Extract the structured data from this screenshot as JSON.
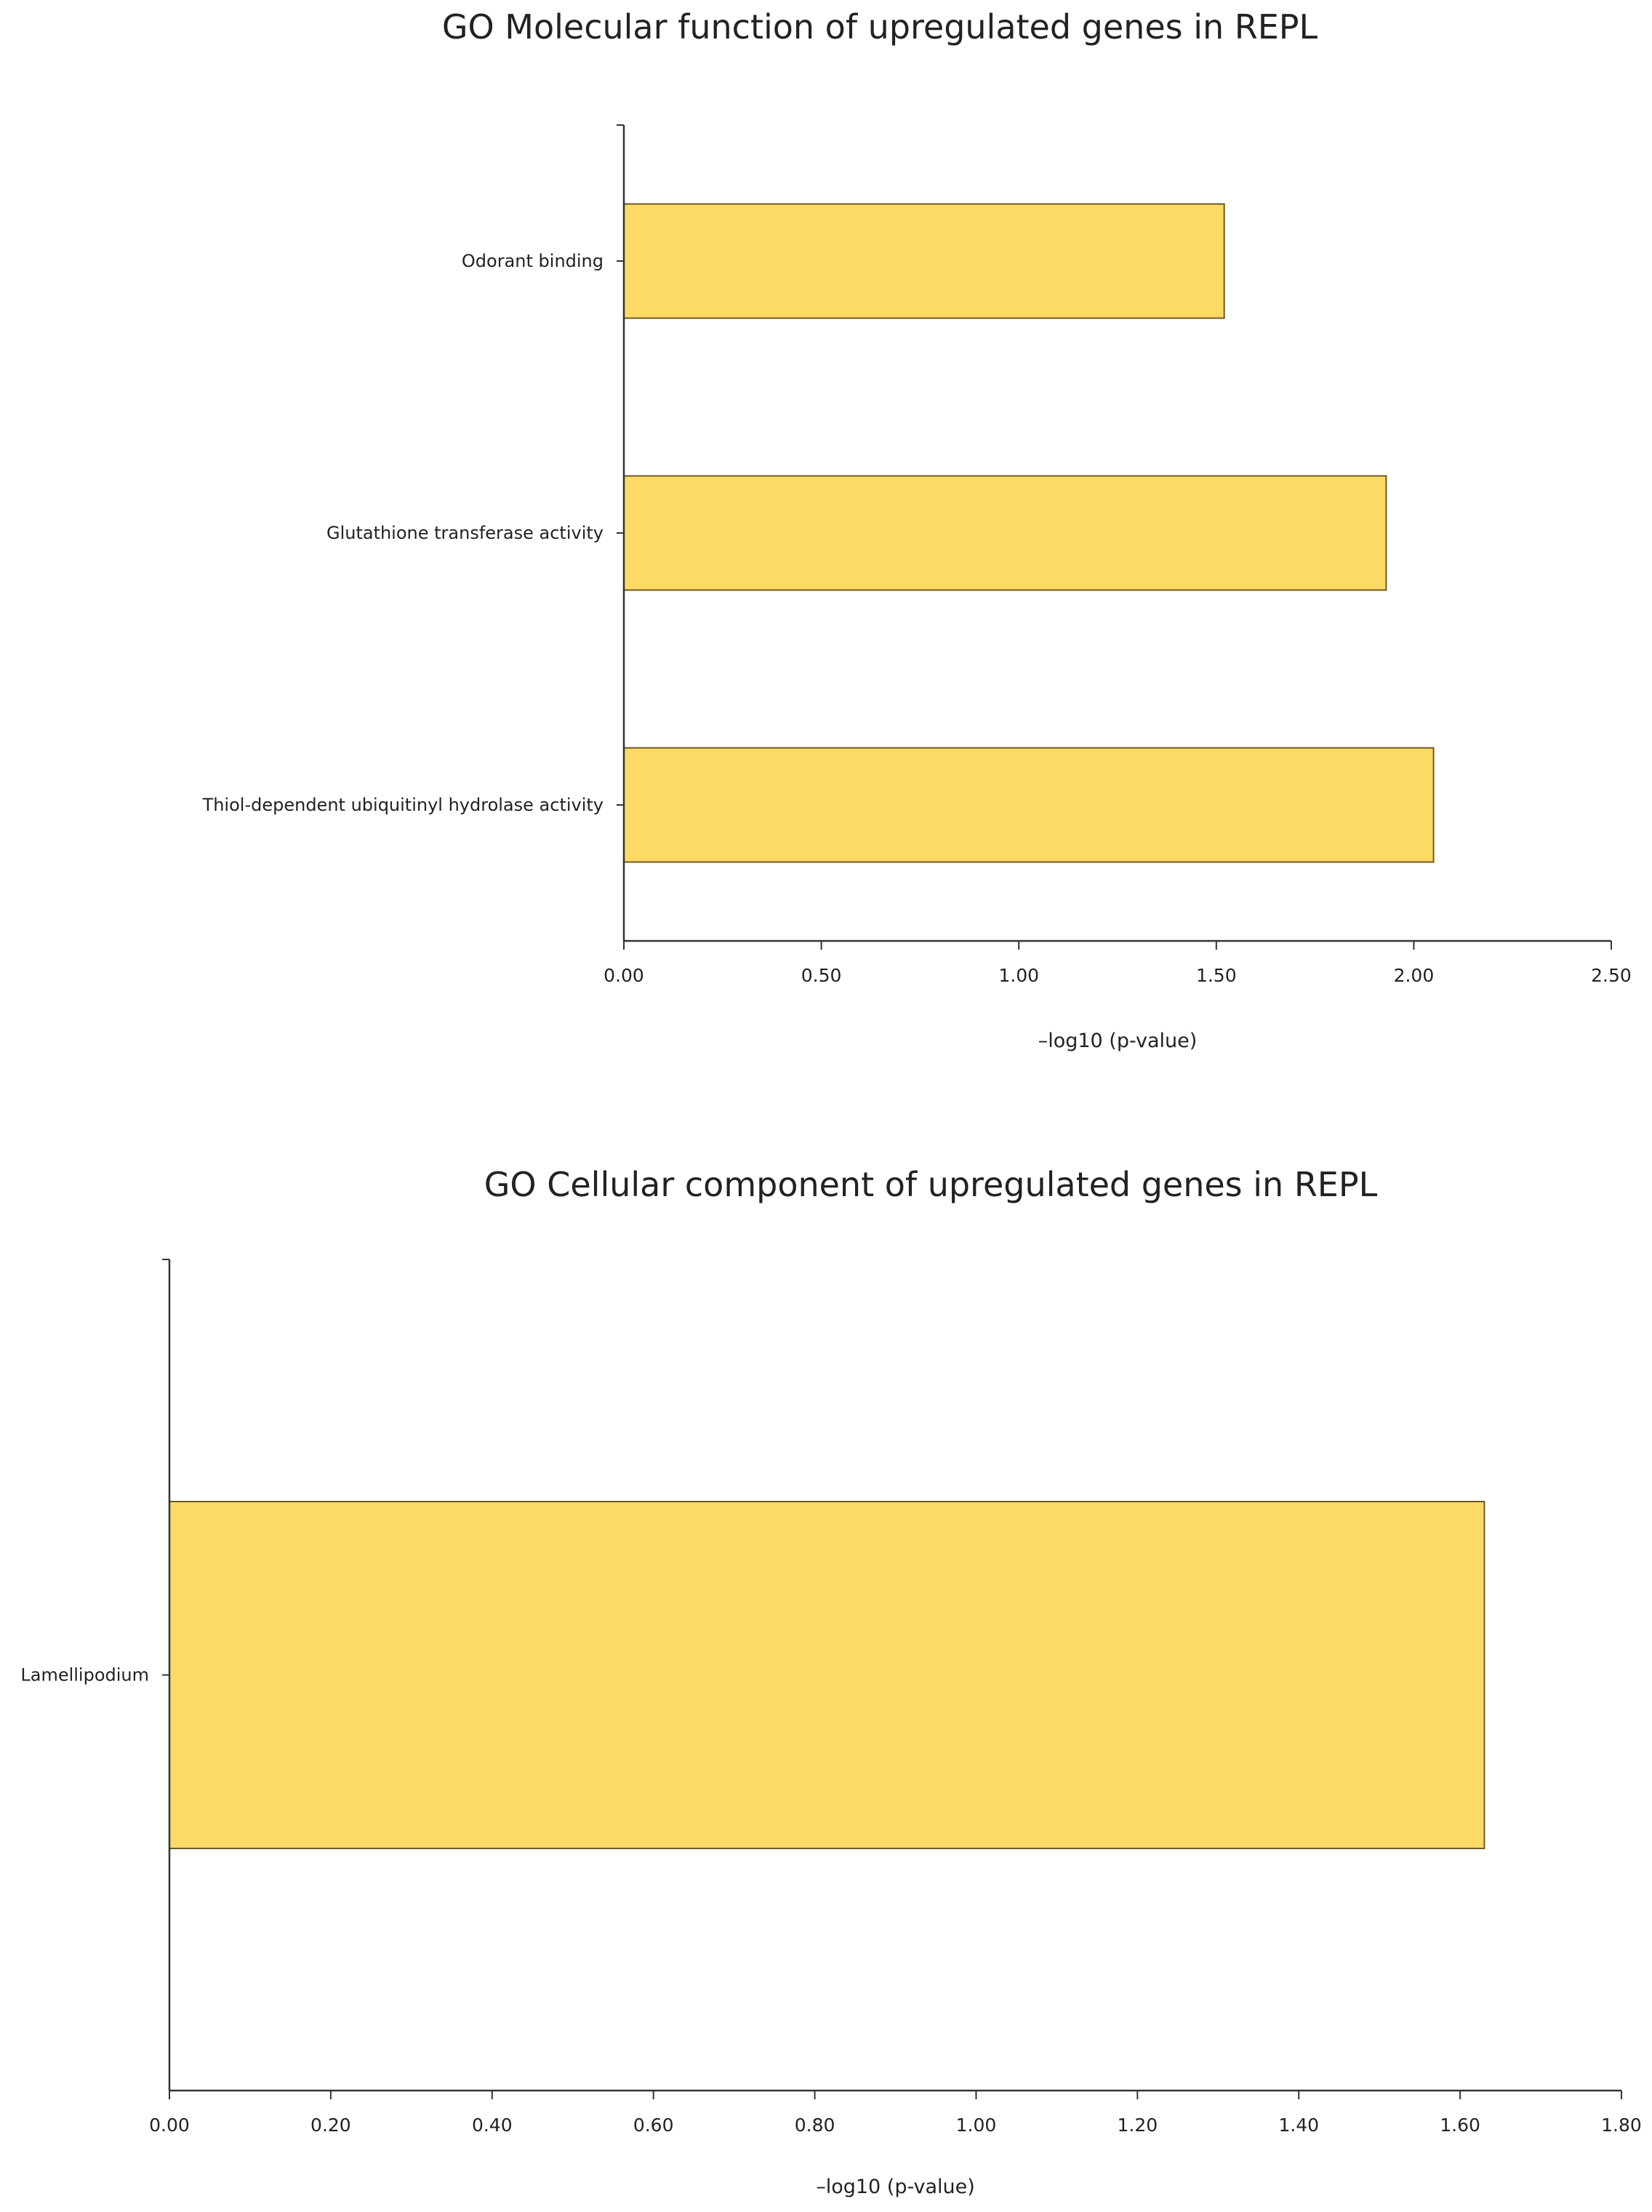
{
  "chart_data": [
    {
      "type": "bar",
      "orientation": "horizontal",
      "title": "GO Molecular function of upregulated genes in REPL",
      "xlabel": "–log10 (p-value)",
      "ylabel": "",
      "categories": [
        "Odorant binding",
        "Glutathione transferase activity",
        "Thiol-dependent ubiquitinyl hydrolase activity"
      ],
      "values": [
        1.52,
        1.93,
        2.05
      ],
      "xlim": [
        0,
        2.5
      ],
      "ticks": [
        "0.00",
        "0.50",
        "1.00",
        "1.50",
        "2.00",
        "2.50"
      ],
      "grid": false,
      "bar_color": "#FDD966",
      "bar_edge_color": "#6b5a22"
    },
    {
      "type": "bar",
      "orientation": "horizontal",
      "title": "GO Cellular component of upregulated genes in REPL",
      "xlabel": "–log10 (p-value)",
      "ylabel": "",
      "categories": [
        "Lamellipodium"
      ],
      "values": [
        1.63
      ],
      "xlim": [
        0,
        1.8
      ],
      "ticks": [
        "0.00",
        "0.20",
        "0.40",
        "0.60",
        "0.80",
        "1.00",
        "1.20",
        "1.40",
        "1.60",
        "1.80"
      ],
      "grid": false,
      "bar_color": "#FDD966",
      "bar_edge_color": "#6b5a22"
    }
  ]
}
